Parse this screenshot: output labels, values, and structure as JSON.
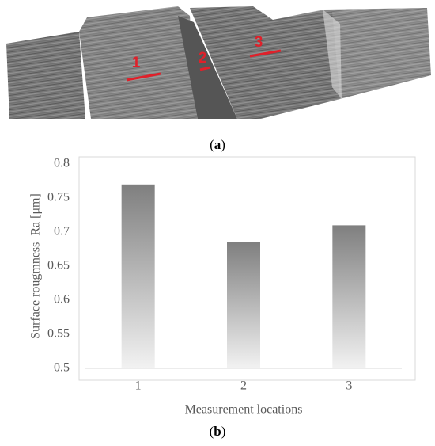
{
  "image": {
    "markers": [
      "1",
      "2",
      "3"
    ],
    "caption": [
      "(",
      "a",
      ")"
    ]
  },
  "chart_data": {
    "type": "bar",
    "categories": [
      "1",
      "2",
      "3"
    ],
    "values": [
      0.77,
      0.685,
      0.71
    ],
    "color": "#808080",
    "ylim": [
      0.5,
      0.8
    ],
    "yticks": [
      0.5,
      0.55,
      0.6,
      0.65,
      0.7,
      0.75,
      0.8
    ],
    "grid": false,
    "x_label": "Measurement locations",
    "y_label": "Surface rougmness  Ra [μm]",
    "caption": [
      "(",
      "b",
      ")"
    ]
  }
}
